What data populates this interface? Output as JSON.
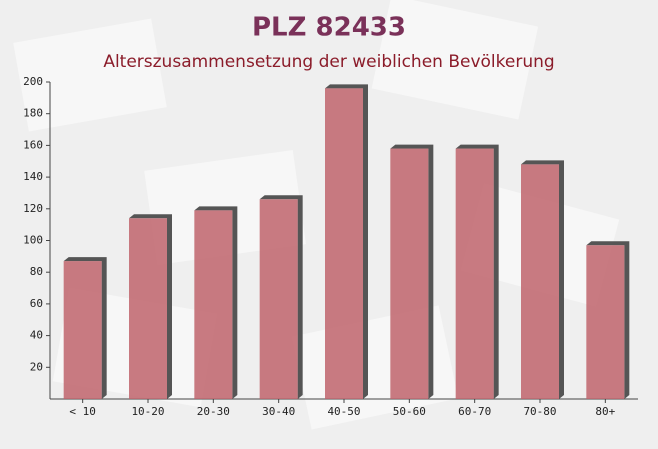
{
  "chart_data": {
    "type": "bar",
    "title": "PLZ 82433",
    "subtitle": "Alterszusammensetzung der weiblichen Bevölkerung",
    "categories": [
      "< 10",
      "10-20",
      "20-30",
      "30-40",
      "40-50",
      "50-60",
      "60-70",
      "70-80",
      "80+"
    ],
    "values": [
      87,
      114,
      119,
      126,
      196,
      158,
      158,
      148,
      97
    ],
    "color": "#c0646c",
    "ylim": [
      0,
      200
    ],
    "yticks": [
      20,
      40,
      60,
      80,
      100,
      120,
      140,
      160,
      180,
      200
    ]
  }
}
